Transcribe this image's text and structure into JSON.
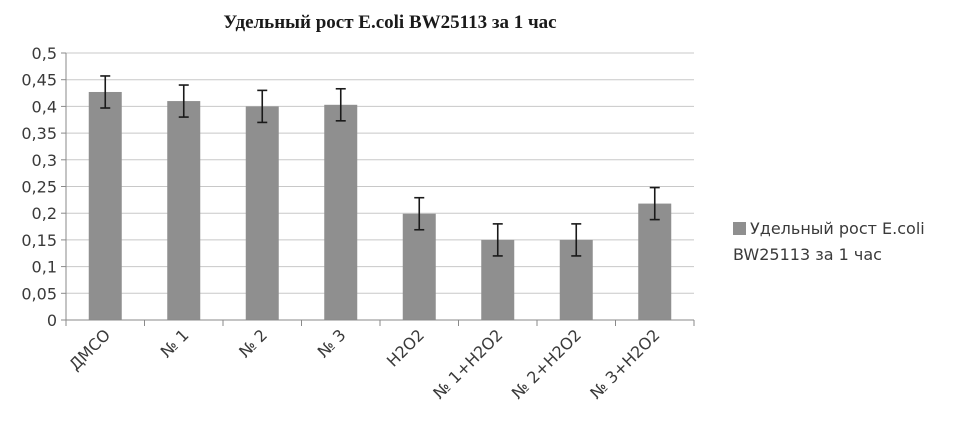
{
  "chart_data": {
    "type": "bar",
    "title": "Удельный рост E.coli BW25113 за 1 час",
    "xlabel": "",
    "ylabel": "",
    "categories": [
      "ДМСО",
      "№ 1",
      "№ 2",
      "№ 3",
      "H2O2",
      "№ 1+H2O2",
      "№ 2+H2O2",
      "№ 3+H2O2"
    ],
    "series": [
      {
        "name": "Удельный рост E.coli BW25113 за 1 час",
        "values": [
          0.427,
          0.41,
          0.4,
          0.403,
          0.199,
          0.15,
          0.15,
          0.218
        ],
        "error": [
          0.03,
          0.03,
          0.03,
          0.03,
          0.03,
          0.03,
          0.03,
          0.03
        ]
      }
    ],
    "ylim": [
      0,
      0.5
    ],
    "yticks": [
      "0",
      "0,05",
      "0,1",
      "0,15",
      "0,2",
      "0,25",
      "0,3",
      "0,35",
      "0,4",
      "0,45",
      "0,5"
    ],
    "grid": true,
    "legend_position": "right",
    "bar_color": "#8f8f8f",
    "grid_color": "#c8c8c8",
    "axis_color": "#8a8a8a"
  }
}
